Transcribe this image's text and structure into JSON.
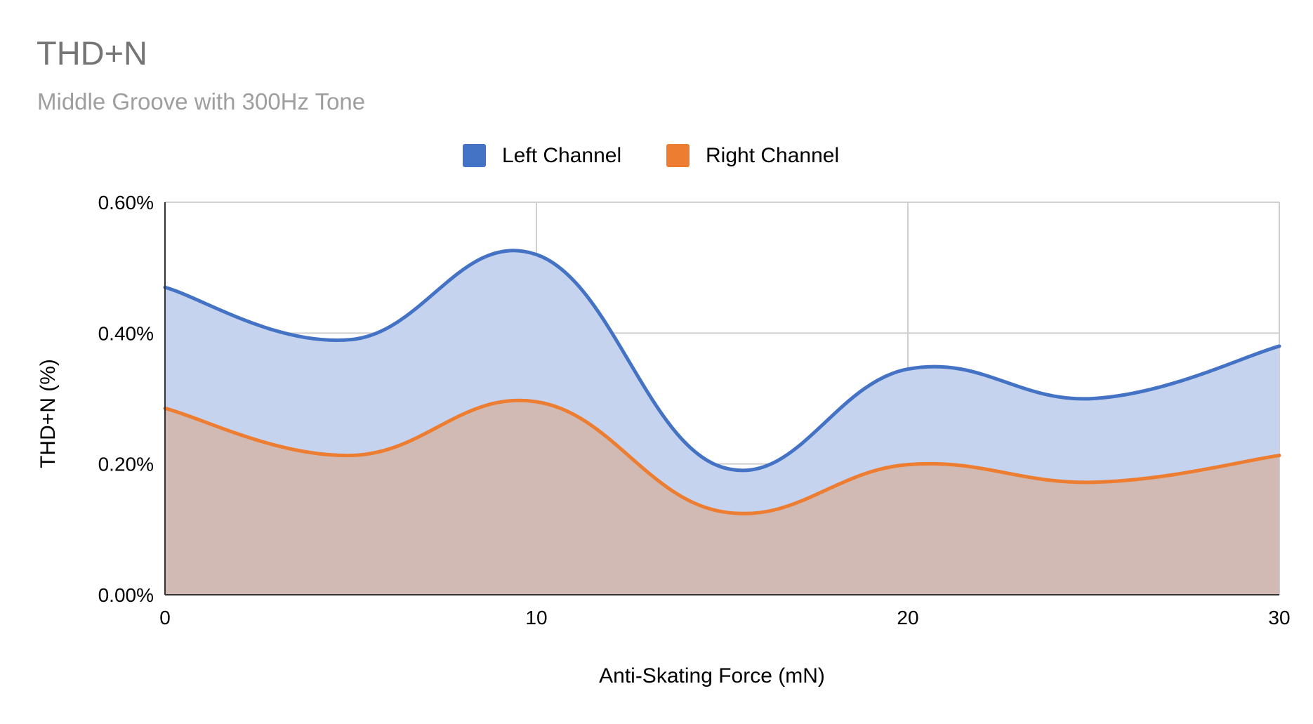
{
  "chart_data": {
    "type": "area",
    "title": "THD+N",
    "subtitle": "Middle Groove with 300Hz Tone",
    "xlabel": "Anti-Skating Force (mN)",
    "ylabel": "THD+N (%)",
    "x": [
      0,
      5,
      10,
      15,
      20,
      25,
      30
    ],
    "xlim": [
      0,
      30
    ],
    "ylim": [
      0,
      0.006
    ],
    "xticks": [
      "0",
      "10",
      "20",
      "30"
    ],
    "yticks": [
      "0.00%",
      "0.20%",
      "0.40%",
      "0.60%"
    ],
    "legend_position": "top",
    "grid": true,
    "series": [
      {
        "name": "Left Channel",
        "color": "#4472C4",
        "fill": "#C5D3EE",
        "values": [
          0.0047,
          0.0039,
          0.0052,
          0.00195,
          0.00345,
          0.003,
          0.0038
        ]
      },
      {
        "name": "Right Channel",
        "color": "#ED7D31",
        "fill": "#D1BAB4",
        "values": [
          0.00285,
          0.00213,
          0.00295,
          0.00127,
          0.00199,
          0.00172,
          0.00213
        ]
      }
    ]
  }
}
